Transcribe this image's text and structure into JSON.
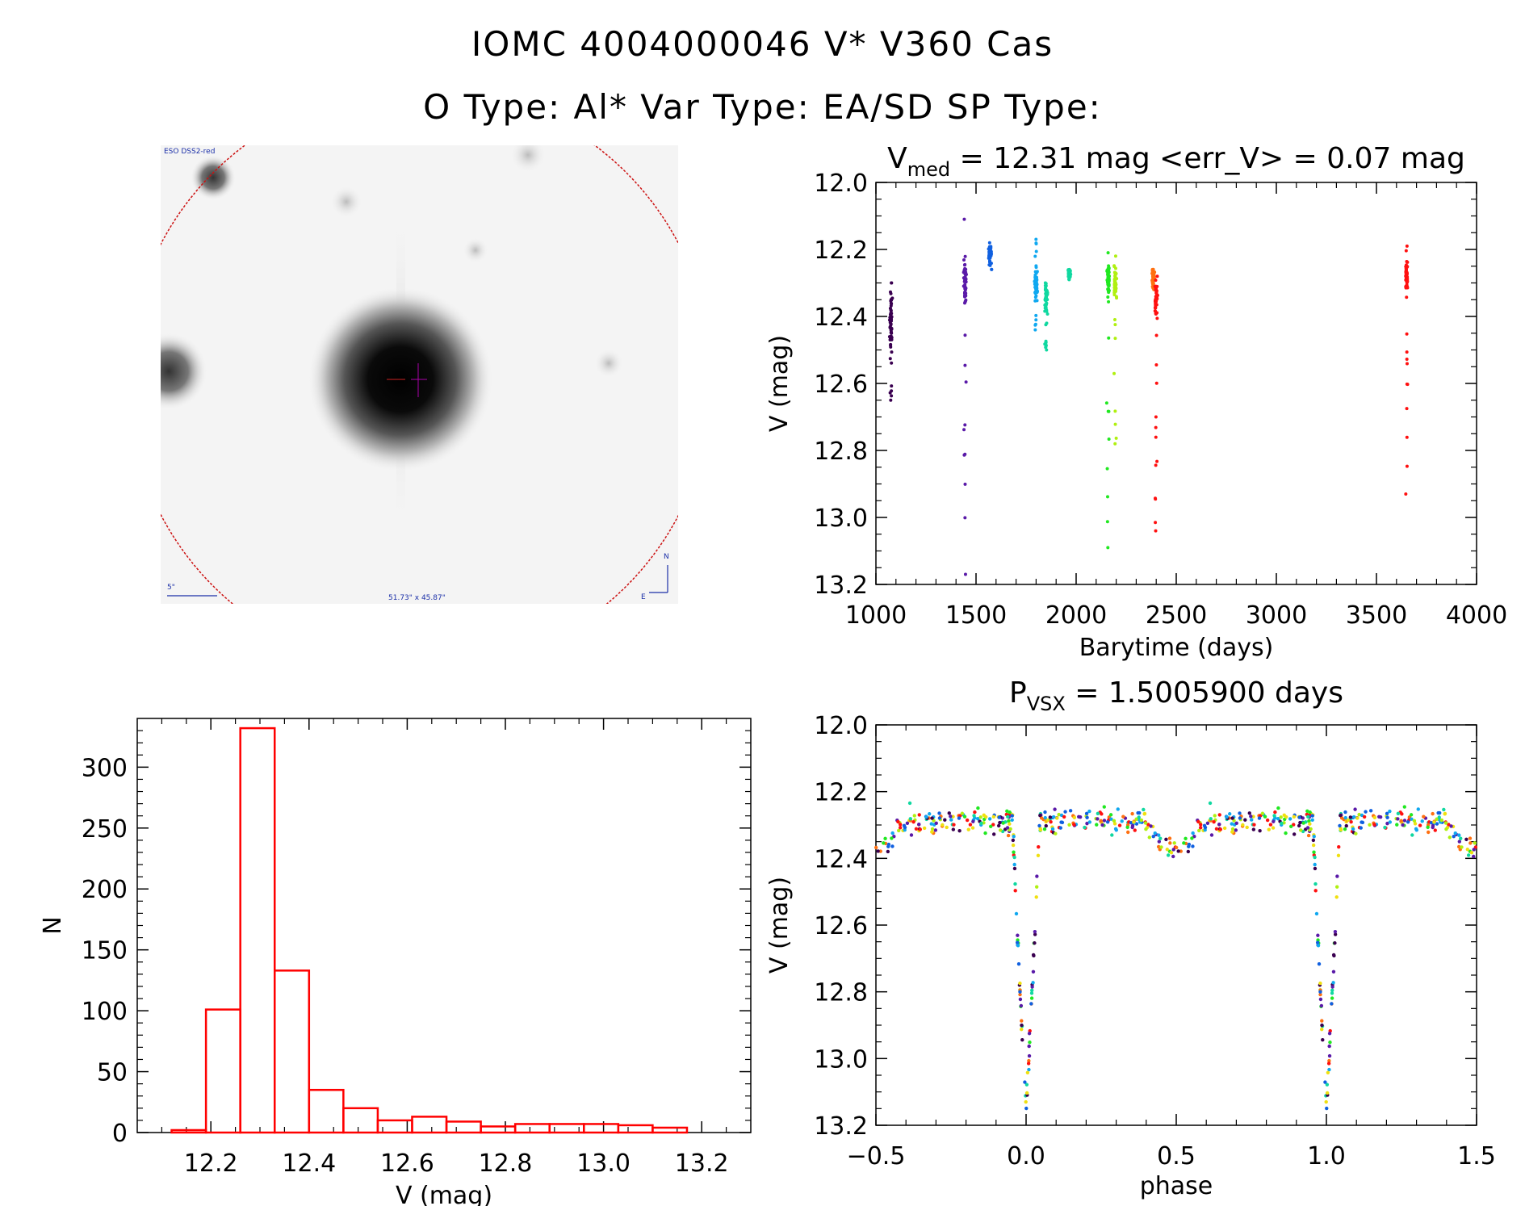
{
  "header": {
    "title_line1": "IOMC 4004000046   V* V360 Cas",
    "title_line2": "O Type: Al*  Var Type: EA/SD  SP Type:"
  },
  "sky_image": {
    "survey_label": "ESO DSS2-red",
    "scale_label": "5\"",
    "field_label": "51.73\" x 45.87\"",
    "compass_n": "N",
    "compass_e": "E",
    "circle_color": "#cc1111"
  },
  "colors": {
    "hist": "#ff0000",
    "axis": "#000000",
    "epochs": [
      "#3a0050",
      "#5a1aa8",
      "#1060e0",
      "#10a8f0",
      "#10d8a0",
      "#20e820",
      "#b0f010",
      "#f0e010",
      "#ff7010",
      "#ff1010"
    ]
  },
  "chart_data": [
    {
      "id": "lightcurve",
      "type": "scatter",
      "title_main": "V",
      "title_sub": "med",
      "title_rest": " = 12.31 mag <err_V> = 0.07 mag",
      "xlabel": "Barytime (days)",
      "ylabel": "V (mag)",
      "xlim": [
        1000,
        4000
      ],
      "ylim": [
        12.0,
        13.2
      ],
      "y_inverted": true,
      "x_ticks": [
        1000,
        1500,
        2000,
        2500,
        3000,
        3500,
        4000
      ],
      "y_ticks": [
        "12.0",
        "12.2",
        "12.4",
        "12.6",
        "12.8",
        "13.0",
        "13.2"
      ],
      "series": [
        {
          "epoch": 0,
          "x": 1075,
          "y_median": 12.42,
          "y_spread": 0.1,
          "y_min": 12.3,
          "y_max": 12.65
        },
        {
          "epoch": 1,
          "x": 1445,
          "y_median": 12.3,
          "y_spread": 0.06,
          "y_min": 12.11,
          "y_max": 13.17
        },
        {
          "epoch": 2,
          "x": 1570,
          "y_median": 12.21,
          "y_spread": 0.02,
          "y_min": 12.18,
          "y_max": 12.26
        },
        {
          "epoch": 3,
          "x": 1800,
          "y_median": 12.3,
          "y_spread": 0.04,
          "y_min": 12.17,
          "y_max": 12.44
        },
        {
          "epoch": 4,
          "x": 1850,
          "y_median": 12.34,
          "y_spread": 0.04,
          "y_min": 12.3,
          "y_max": 12.5
        },
        {
          "epoch": 4,
          "x": 1965,
          "y_median": 12.27,
          "y_spread": 0.01,
          "y_min": 12.26,
          "y_max": 12.29
        },
        {
          "epoch": 5,
          "x": 2160,
          "y_median": 12.29,
          "y_spread": 0.04,
          "y_min": 12.21,
          "y_max": 13.09
        },
        {
          "epoch": 6,
          "x": 2195,
          "y_median": 12.3,
          "y_spread": 0.04,
          "y_min": 12.22,
          "y_max": 12.78
        },
        {
          "epoch": 8,
          "x": 2385,
          "y_median": 12.28,
          "y_spread": 0.02,
          "y_min": 12.26,
          "y_max": 12.32
        },
        {
          "epoch": 9,
          "x": 2400,
          "y_median": 12.35,
          "y_spread": 0.06,
          "y_min": 12.28,
          "y_max": 13.04
        },
        {
          "epoch": 9,
          "x": 3650,
          "y_median": 12.28,
          "y_spread": 0.04,
          "y_min": 12.19,
          "y_max": 12.93
        }
      ]
    },
    {
      "id": "histogram",
      "type": "bar",
      "xlabel": "V (mag)",
      "ylabel": "N",
      "xlim": [
        12.05,
        13.3
      ],
      "ylim": [
        0,
        340
      ],
      "x_ticks": [
        "12.2",
        "12.4",
        "12.6",
        "12.8",
        "13.0",
        "13.2"
      ],
      "y_ticks": [
        "0",
        "50",
        "100",
        "150",
        "200",
        "250",
        "300"
      ],
      "bin_width": 0.07,
      "bin_left_edges": [
        12.12,
        12.19,
        12.26,
        12.33,
        12.4,
        12.47,
        12.54,
        12.61,
        12.68,
        12.75,
        12.82,
        12.89,
        12.96,
        13.03,
        13.1
      ],
      "values": [
        2,
        101,
        332,
        133,
        35,
        20,
        10,
        13,
        9,
        5,
        7,
        7,
        7,
        6,
        4
      ]
    },
    {
      "id": "phased",
      "type": "scatter",
      "title_main": "P",
      "title_sub": "VSX",
      "title_rest": " = 1.5005900 days",
      "xlabel": "phase",
      "ylabel": "V (mag)",
      "xlim": [
        -0.5,
        1.5
      ],
      "ylim": [
        12.0,
        13.2
      ],
      "y_inverted": true,
      "x_ticks": [
        "−0.5",
        "0.0",
        "0.5",
        "1.0",
        "1.5"
      ],
      "y_ticks": [
        "12.0",
        "12.2",
        "12.4",
        "12.6",
        "12.8",
        "13.0",
        "13.2"
      ],
      "period_days": 1.50059,
      "model": {
        "baseline": 12.29,
        "primary_depth": 0.86,
        "primary_phase": 0.0,
        "primary_halfwidth": 0.045,
        "secondary_depth": 0.08,
        "secondary_phase": 0.5,
        "secondary_halfwidth": 0.1
      }
    }
  ]
}
